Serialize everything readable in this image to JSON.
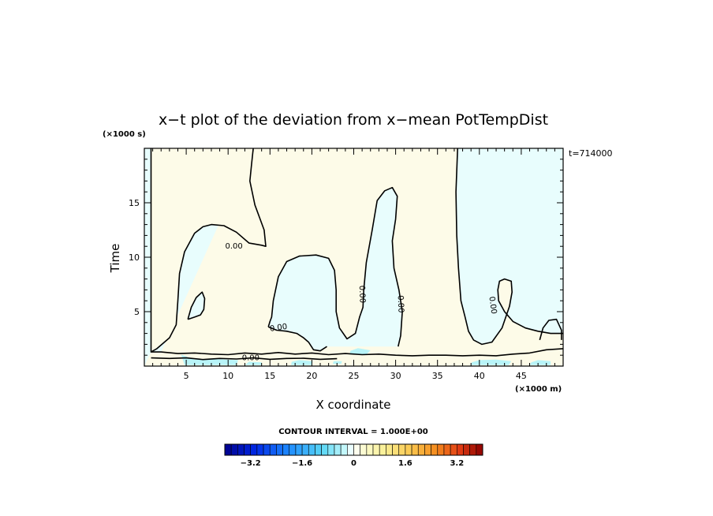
{
  "chart_data": {
    "type": "heatmap",
    "title": "x−t plot of the deviation from x−mean PotTempDist",
    "xlabel": "X coordinate",
    "ylabel": "Time",
    "x_unit": "(×1000 m)",
    "y_unit": "(×1000 s)",
    "timestamp": "t=714000",
    "xlim": [
      0,
      50
    ],
    "ylim": [
      0,
      20
    ],
    "x_ticks": [
      5,
      10,
      15,
      20,
      25,
      30,
      35,
      40,
      45
    ],
    "y_ticks": [
      5,
      10,
      15
    ],
    "contour_label": "0.00",
    "contour_interval_text": "CONTOUR INTERVAL = 1.000E+00",
    "colorbar": {
      "min": -4.0,
      "max": 4.0,
      "step": 0.2,
      "tick_values": [
        -3.2,
        -1.6,
        0,
        1.6,
        3.2
      ],
      "tick_labels": [
        "−3.2",
        "−1.6",
        "0",
        "1.6",
        "3.2"
      ]
    },
    "regions": {
      "positive_fill": "#fdfbe8",
      "negative_fill": "#e8fdfd"
    },
    "zero_contours": [
      {
        "points": [
          [
            0.8,
            20
          ],
          [
            0.8,
            1.3
          ],
          [
            1.5,
            1.6
          ],
          [
            3,
            2.6
          ],
          [
            3.8,
            3.8
          ],
          [
            4,
            6
          ],
          [
            4.2,
            8.5
          ],
          [
            4.8,
            10.5
          ],
          [
            6,
            12.2
          ],
          [
            7,
            12.8
          ],
          [
            8,
            13
          ],
          [
            9.5,
            12.9
          ],
          [
            11,
            12.3
          ],
          [
            12.5,
            11.3
          ],
          [
            14,
            11.1
          ],
          [
            14.5,
            11
          ],
          [
            14.3,
            12.5
          ],
          [
            13.2,
            14.8
          ],
          [
            12.6,
            17
          ],
          [
            12.8,
            18.5
          ],
          [
            13,
            20
          ]
        ]
      },
      {
        "points": [
          [
            37.4,
            20
          ],
          [
            37.2,
            16
          ],
          [
            37.3,
            12
          ],
          [
            37.5,
            9
          ],
          [
            37.8,
            6
          ],
          [
            38.3,
            4.5
          ],
          [
            38.7,
            3.2
          ],
          [
            39.3,
            2.4
          ],
          [
            40.3,
            2
          ],
          [
            41.5,
            2.2
          ],
          [
            42.7,
            3.5
          ],
          [
            43.6,
            5.5
          ],
          [
            43.9,
            6.8
          ],
          [
            43.8,
            7.8
          ],
          [
            43,
            8
          ],
          [
            42.4,
            7.8
          ],
          [
            42.2,
            7
          ],
          [
            42.3,
            6
          ],
          [
            43,
            5
          ],
          [
            44,
            4.1
          ],
          [
            45.5,
            3.5
          ],
          [
            47,
            3.2
          ],
          [
            48.5,
            3
          ],
          [
            50,
            3
          ]
        ]
      },
      {
        "points": [
          [
            14.8,
            3.6
          ],
          [
            15,
            4.1
          ],
          [
            15.2,
            4.5
          ],
          [
            15.4,
            6
          ],
          [
            16,
            8.2
          ],
          [
            17,
            9.6
          ],
          [
            18.5,
            10.1
          ],
          [
            20.5,
            10.2
          ],
          [
            22,
            9.9
          ],
          [
            22.7,
            8.8
          ],
          [
            22.9,
            7
          ],
          [
            22.9,
            5
          ],
          [
            23.3,
            3.5
          ],
          [
            24.2,
            2.5
          ],
          [
            25.2,
            3
          ],
          [
            25.7,
            4.5
          ],
          [
            26.1,
            5.4
          ],
          [
            26.2,
            7
          ],
          [
            26.5,
            9.5
          ],
          [
            27.2,
            12.5
          ],
          [
            27.8,
            15.2
          ],
          [
            28.7,
            16.1
          ],
          [
            29.6,
            16.4
          ],
          [
            30.2,
            15.6
          ],
          [
            30.0,
            13.5
          ],
          [
            29.6,
            11.5
          ],
          [
            29.8,
            9
          ],
          [
            30.4,
            7
          ],
          [
            30.8,
            5
          ],
          [
            30.6,
            2.8
          ],
          [
            30.3,
            1.8
          ]
        ]
      },
      {
        "points": [
          [
            14.8,
            3.6
          ],
          [
            15.8,
            3.3
          ],
          [
            17,
            3.2
          ],
          [
            18.2,
            3
          ],
          [
            19,
            2.6
          ],
          [
            19.6,
            2.2
          ],
          [
            20.2,
            1.5
          ],
          [
            21,
            1.4
          ],
          [
            21.8,
            1.8
          ]
        ]
      },
      {
        "points": [
          [
            0.8,
            1.3
          ],
          [
            2,
            1.3
          ],
          [
            4,
            1.15
          ],
          [
            6,
            1.2
          ],
          [
            8,
            1.1
          ],
          [
            10,
            1.05
          ],
          [
            12,
            1.2
          ],
          [
            14,
            1.1
          ],
          [
            16,
            1.25
          ],
          [
            18,
            1.1
          ],
          [
            20,
            1.2
          ],
          [
            22,
            1.05
          ],
          [
            24,
            1.15
          ],
          [
            26,
            1.05
          ],
          [
            28,
            1.1
          ],
          [
            30,
            1.0
          ],
          [
            32,
            0.95
          ],
          [
            34,
            1.0
          ],
          [
            36,
            1.0
          ],
          [
            38,
            0.95
          ],
          [
            40,
            1.0
          ],
          [
            42,
            0.95
          ],
          [
            44,
            1.1
          ],
          [
            46,
            1.2
          ],
          [
            48,
            1.5
          ],
          [
            50,
            1.6
          ]
        ]
      },
      {
        "points": [
          [
            0.8,
            0.75
          ],
          [
            3,
            0.7
          ],
          [
            5,
            0.75
          ],
          [
            7,
            0.6
          ],
          [
            9,
            0.7
          ],
          [
            11,
            0.65
          ],
          [
            13,
            0.75
          ],
          [
            15,
            0.62
          ],
          [
            17,
            0.7
          ],
          [
            19,
            0.72
          ],
          [
            21,
            0.62
          ],
          [
            23,
            0.68
          ]
        ]
      },
      {
        "points": [
          [
            5.2,
            4.3
          ],
          [
            5.6,
            5.4
          ],
          [
            6.2,
            6.3
          ],
          [
            6.9,
            6.8
          ],
          [
            7.2,
            6.2
          ],
          [
            7.1,
            5.2
          ],
          [
            6.7,
            4.7
          ],
          [
            6,
            4.5
          ],
          [
            5.2,
            4.3
          ]
        ]
      },
      {
        "points": [
          [
            47.2,
            2.4
          ],
          [
            47.6,
            3.5
          ],
          [
            48.3,
            4.2
          ],
          [
            49.2,
            4.3
          ],
          [
            49.8,
            3.3
          ],
          [
            49.8,
            2.4
          ]
        ]
      }
    ],
    "negative_patches": [
      {
        "points": [
          [
            4.4,
            1.05
          ],
          [
            4.8,
            0.1
          ],
          [
            11,
            0.1
          ],
          [
            11.2,
            0.55
          ],
          [
            8,
            0.65
          ],
          [
            6,
            0.6
          ],
          [
            4.4,
            1.05
          ]
        ]
      },
      {
        "points": [
          [
            12,
            0.1
          ],
          [
            14,
            0.1
          ],
          [
            14,
            0.35
          ],
          [
            12.5,
            0.4
          ]
        ]
      },
      {
        "points": [
          [
            17.5,
            0.1
          ],
          [
            20,
            0.1
          ],
          [
            20.1,
            0.45
          ],
          [
            18.5,
            0.55
          ],
          [
            17.6,
            0.4
          ]
        ]
      },
      {
        "points": [
          [
            24.5,
            1.05
          ],
          [
            26.5,
            1.05
          ],
          [
            27,
            1.45
          ],
          [
            25.5,
            1.65
          ],
          [
            24.6,
            1.4
          ]
        ]
      },
      {
        "points": [
          [
            39,
            0.1
          ],
          [
            43.5,
            0.1
          ],
          [
            43.8,
            0.45
          ],
          [
            42,
            0.6
          ],
          [
            40,
            0.55
          ],
          [
            39.1,
            0.35
          ]
        ]
      },
      {
        "points": [
          [
            46,
            0.1
          ],
          [
            48.5,
            0.1
          ],
          [
            48.5,
            0.45
          ],
          [
            47,
            0.55
          ],
          [
            46.2,
            0.35
          ]
        ]
      },
      {
        "points": [
          [
            22.5,
            0.2
          ],
          [
            23.5,
            0.2
          ],
          [
            23.6,
            0.45
          ],
          [
            22.6,
            0.45
          ]
        ]
      }
    ],
    "contour_labels": [
      {
        "x": 10.7,
        "y": 11.1,
        "angle": 0
      },
      {
        "x": 16,
        "y": 3.6,
        "angle": -8
      },
      {
        "x": 12.7,
        "y": 0.85,
        "angle": 0
      },
      {
        "x": 26.1,
        "y": 6.6,
        "angle": 88
      },
      {
        "x": 30.7,
        "y": 5.7,
        "angle": 88
      },
      {
        "x": 41.7,
        "y": 5.6,
        "angle": 82
      }
    ]
  }
}
